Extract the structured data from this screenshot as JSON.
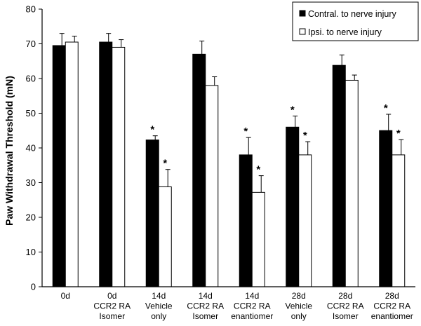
{
  "chart_data": {
    "type": "bar",
    "title": "",
    "xlabel": "",
    "ylabel": "Paw Withdrawal Threshold (mN)",
    "ylim": [
      0,
      80
    ],
    "yticks": [
      0,
      10,
      20,
      30,
      40,
      50,
      60,
      70,
      80
    ],
    "categories": [
      [
        "0d"
      ],
      [
        "0d",
        "CCR2 RA",
        "Isomer"
      ],
      [
        "14d",
        "Vehicle",
        "only"
      ],
      [
        "14d",
        "CCR2 RA",
        "Isomer"
      ],
      [
        "14d",
        "CCR2 RA",
        "enantiomer"
      ],
      [
        "28d",
        "Vehicle",
        "only"
      ],
      [
        "28d",
        "CCR2 RA",
        "Isomer"
      ],
      [
        "28d",
        "CCR2 RA",
        "enantiomer"
      ]
    ],
    "series": [
      {
        "name": "Contral. to nerve injury",
        "color": "#000000",
        "values": [
          69.5,
          70.5,
          42.3,
          67,
          38,
          46,
          63.8,
          45
        ],
        "errors": [
          3.5,
          2.5,
          1.2,
          3.8,
          5,
          3.2,
          3,
          4.7
        ],
        "significant": [
          false,
          false,
          true,
          false,
          true,
          true,
          false,
          true
        ]
      },
      {
        "name": "Ipsi. to nerve injury",
        "color": "#ffffff",
        "values": [
          70.5,
          69,
          28.8,
          58,
          27.2,
          38,
          59.5,
          38
        ],
        "errors": [
          1.7,
          2.2,
          5,
          2.5,
          4.8,
          3.8,
          1.5,
          4.4
        ],
        "significant": [
          false,
          false,
          true,
          false,
          true,
          true,
          false,
          true
        ]
      }
    ],
    "significance_marker": "*",
    "legend_position": "top-right"
  }
}
